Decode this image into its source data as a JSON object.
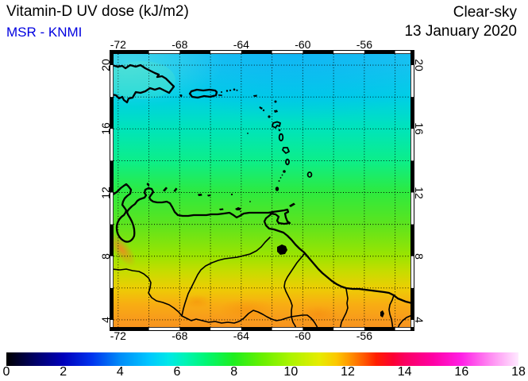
{
  "header": {
    "title": "Vitamin-D UV dose (kJ/m2)",
    "subtitle": "MSR - KNMI",
    "subtitle_color": "#0000E0",
    "condition": "Clear-sky",
    "date": "13 January 2020"
  },
  "map": {
    "lon_min": -72.3,
    "lon_max": -53.0,
    "lat_min": 3.55,
    "lat_max": 20.7,
    "grid_step": 2,
    "lon_ticks": [
      -72,
      -68,
      -64,
      -60,
      -56
    ],
    "lat_ticks": [
      20,
      16,
      12,
      8,
      4
    ],
    "lat_colors": [
      {
        "lat": 20.7,
        "c": "#20c2f2"
      },
      {
        "lat": 18.0,
        "c": "#00cee6"
      },
      {
        "lat": 16.0,
        "c": "#00e4ba"
      },
      {
        "lat": 14.0,
        "c": "#0cee8a"
      },
      {
        "lat": 12.0,
        "c": "#2eea3e"
      },
      {
        "lat": 10.0,
        "c": "#5ce41e"
      },
      {
        "lat": 8.0,
        "c": "#9ce400"
      },
      {
        "lat": 7.0,
        "c": "#c8dc00"
      },
      {
        "lat": 6.0,
        "c": "#ecce04"
      },
      {
        "lat": 5.0,
        "c": "#f8ae12"
      },
      {
        "lat": 4.0,
        "c": "#f89a1c"
      },
      {
        "lat": 3.55,
        "c": "#f8941e"
      }
    ]
  },
  "colorbar": {
    "min": 0,
    "max": 18,
    "ticks": [
      0,
      2,
      4,
      6,
      8,
      10,
      12,
      14,
      16,
      18
    ],
    "stops": [
      {
        "v": 0,
        "c": "#000000"
      },
      {
        "v": 1,
        "c": "#000066"
      },
      {
        "v": 2,
        "c": "#0000bb"
      },
      {
        "v": 3,
        "c": "#0033ee"
      },
      {
        "v": 4,
        "c": "#008cf8"
      },
      {
        "v": 5,
        "c": "#00c6ff"
      },
      {
        "v": 5.7,
        "c": "#00e8e8"
      },
      {
        "v": 6.3,
        "c": "#00f4b4"
      },
      {
        "v": 7,
        "c": "#00f675"
      },
      {
        "v": 8,
        "c": "#1fee1f"
      },
      {
        "v": 9,
        "c": "#69f000"
      },
      {
        "v": 10,
        "c": "#adf400"
      },
      {
        "v": 11,
        "c": "#e6ec00"
      },
      {
        "v": 11.6,
        "c": "#fcc800"
      },
      {
        "v": 12,
        "c": "#ff9d00"
      },
      {
        "v": 12.6,
        "c": "#ff5500"
      },
      {
        "v": 13,
        "c": "#ff1e00"
      },
      {
        "v": 13.6,
        "c": "#fc0033"
      },
      {
        "v": 14,
        "c": "#fa0060"
      },
      {
        "v": 15,
        "c": "#ff00a4"
      },
      {
        "v": 16,
        "c": "#ff20e6"
      },
      {
        "v": 17,
        "c": "#ff8af2"
      },
      {
        "v": 18,
        "c": "#ffeaff"
      }
    ]
  },
  "chart_data": {
    "type": "heatmap",
    "title": "Vitamin-D UV dose (kJ/m2)",
    "source": "MSR - KNMI",
    "condition": "Clear-sky",
    "date": "13 January 2020",
    "lon_range": [
      -72.3,
      -53.0
    ],
    "lat_range": [
      3.5,
      20.7
    ],
    "lon_ticks": [
      -72,
      -68,
      -64,
      -60,
      -56
    ],
    "lat_ticks": [
      20,
      16,
      12,
      8,
      4
    ],
    "grid_step_deg": 2,
    "colorbar": {
      "min": 0,
      "max": 18,
      "tick_step": 2,
      "units": "kJ/m2"
    },
    "dose_by_latitude": [
      {
        "lat": 20,
        "dose": 4.9
      },
      {
        "lat": 18,
        "dose": 5.4
      },
      {
        "lat": 16,
        "dose": 6.1
      },
      {
        "lat": 14,
        "dose": 6.9
      },
      {
        "lat": 12,
        "dose": 7.8
      },
      {
        "lat": 10,
        "dose": 8.7
      },
      {
        "lat": 8,
        "dose": 9.8
      },
      {
        "lat": 6,
        "dose": 11.0
      },
      {
        "lat": 4,
        "dose": 12.2
      }
    ],
    "local_maxima": [
      {
        "lon": -71.8,
        "lat": 8.4,
        "dose": 12.4
      }
    ]
  }
}
